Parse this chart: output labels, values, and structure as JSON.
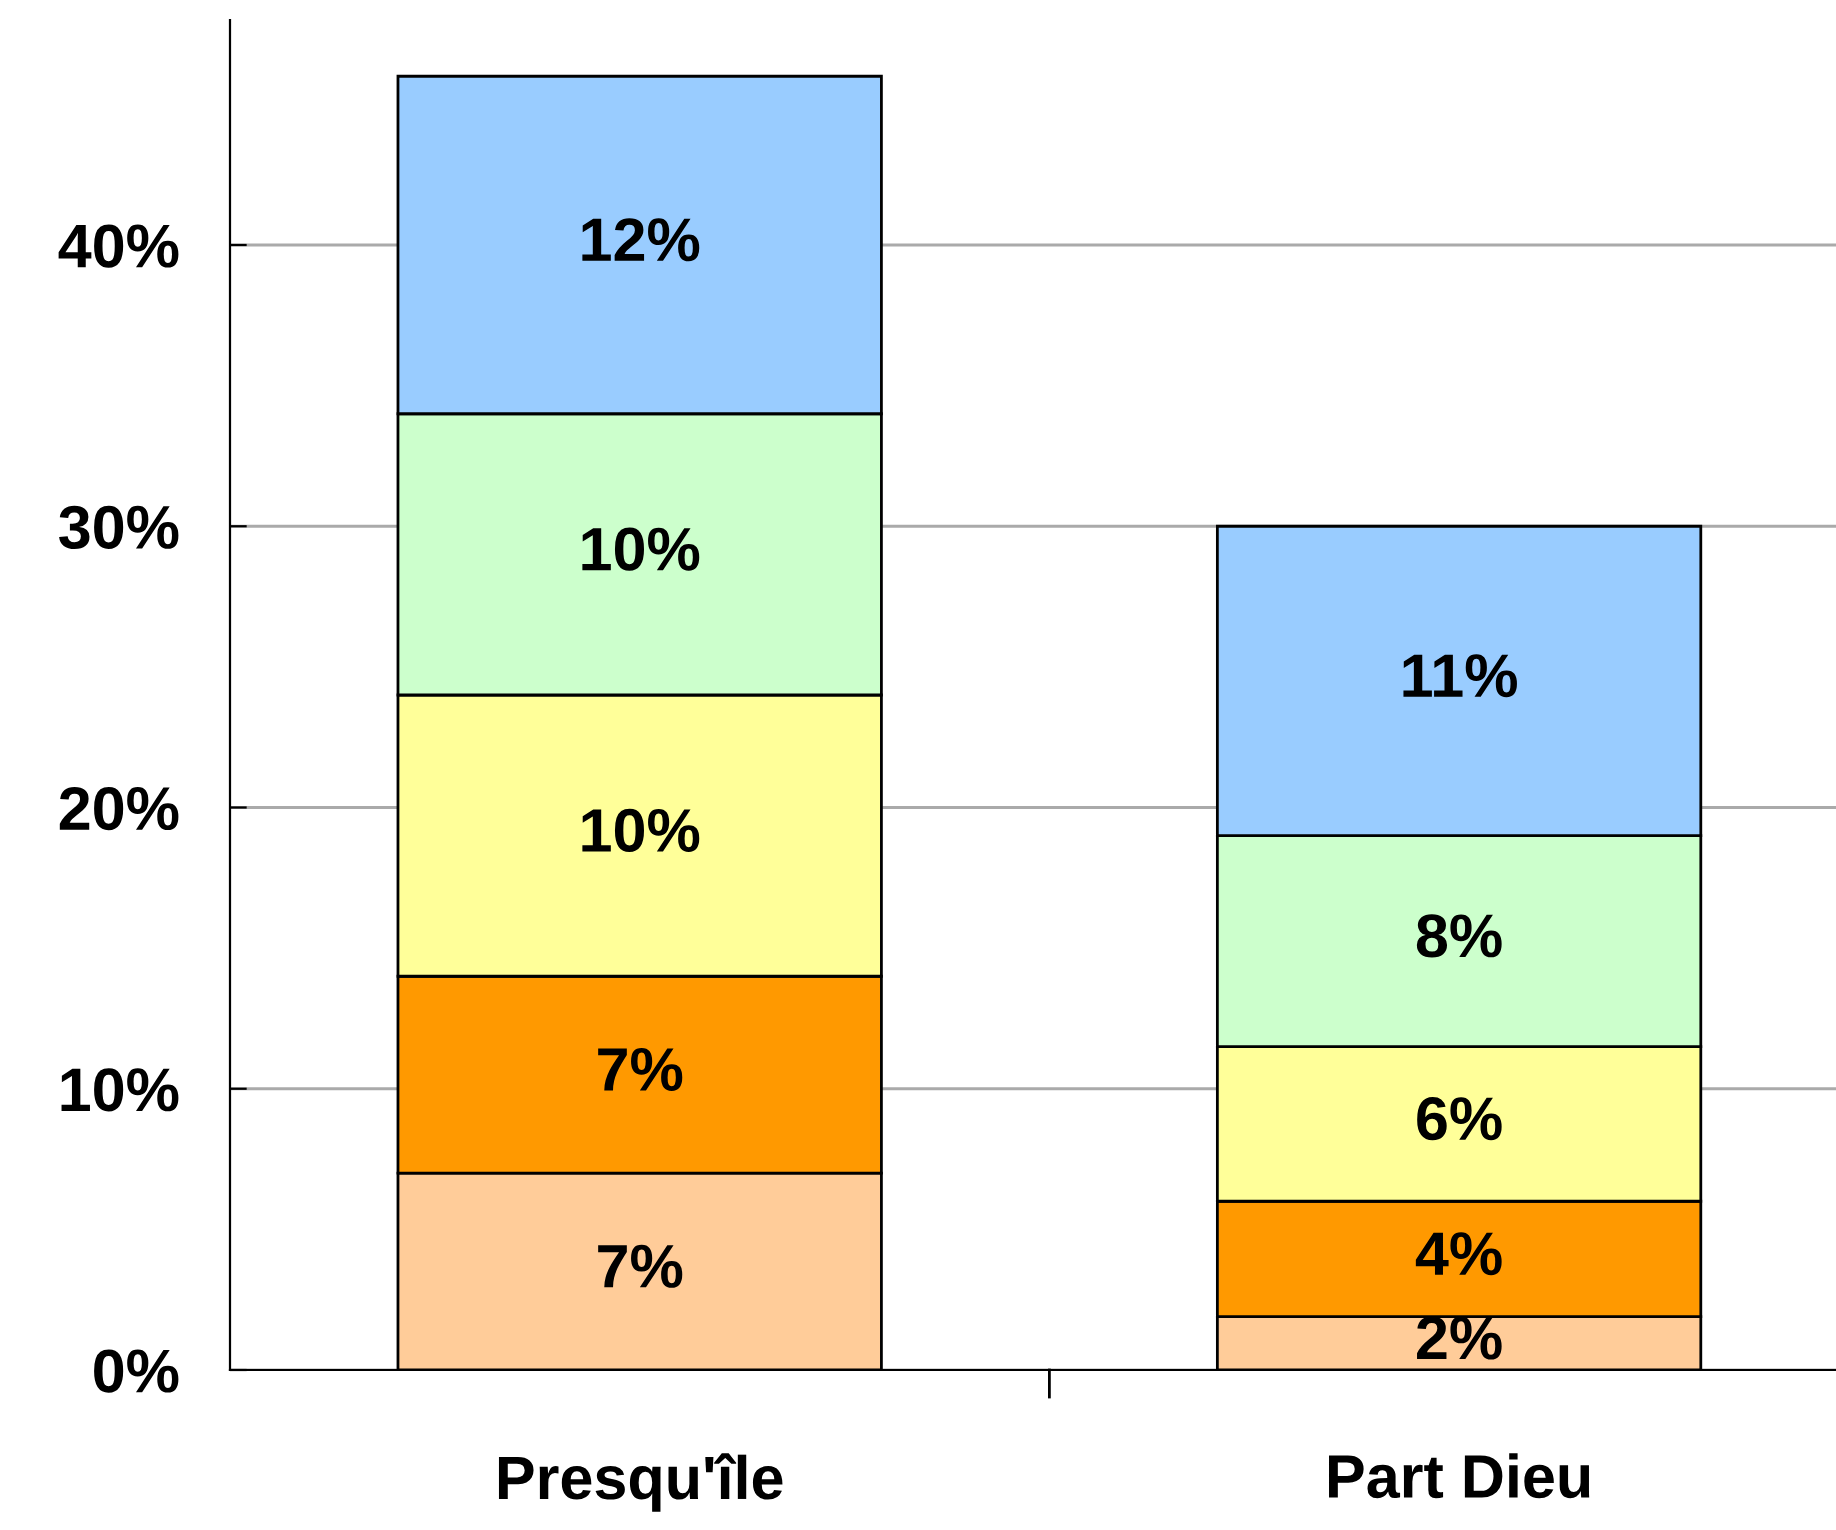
{
  "chart_data": {
    "type": "bar",
    "stacked": true,
    "categories": [
      "Presqu'île",
      "Part Dieu"
    ],
    "series": [
      {
        "color": "#ffcc99",
        "values": [
          7,
          1.9
        ],
        "value_labels": [
          "7%",
          "2%"
        ]
      },
      {
        "color": "#ff9900",
        "values": [
          7,
          4.1
        ],
        "value_labels": [
          "7%",
          "4%"
        ]
      },
      {
        "color": "#ffff99",
        "values": [
          10,
          5.5
        ],
        "value_labels": [
          "10%",
          "6%"
        ]
      },
      {
        "color": "#ccffcc",
        "values": [
          10,
          7.5
        ],
        "value_labels": [
          "10%",
          "8%"
        ]
      },
      {
        "color": "#99ccff",
        "values": [
          12,
          11
        ],
        "value_labels": [
          "12%",
          "11%"
        ]
      }
    ],
    "ylim": [
      0,
      48
    ],
    "yticks": [
      {
        "value": 0,
        "label": "0%"
      },
      {
        "value": 10,
        "label": "10%"
      },
      {
        "value": 20,
        "label": "20%"
      },
      {
        "value": 30,
        "label": "30%"
      },
      {
        "value": 40,
        "label": "40%"
      }
    ],
    "grid": "y",
    "legend": false
  }
}
